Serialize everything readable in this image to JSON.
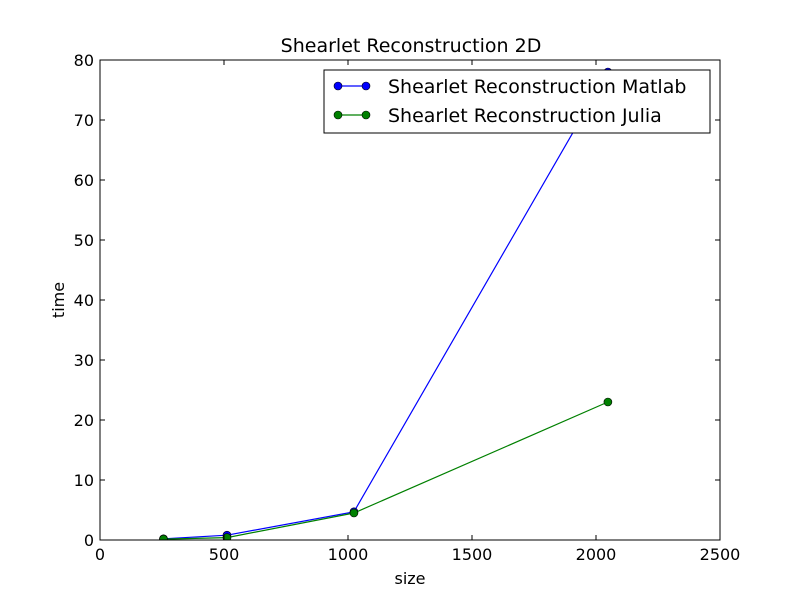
{
  "chart_data": {
    "type": "line",
    "title": "Shearlet Reconstruction 2D",
    "xlabel": "size",
    "ylabel": "time",
    "xlim": [
      0,
      2500
    ],
    "ylim": [
      0,
      80
    ],
    "xticks": [
      0,
      500,
      1000,
      1500,
      2000,
      2500
    ],
    "yticks": [
      0,
      10,
      20,
      30,
      40,
      50,
      60,
      70,
      80
    ],
    "grid": false,
    "legend_position": "top-right",
    "series": [
      {
        "name": "Shearlet Reconstruction Matlab",
        "color": "#0000ff",
        "x": [
          256,
          512,
          1024,
          2048
        ],
        "y": [
          0.2,
          0.8,
          4.7,
          78
        ]
      },
      {
        "name": "Shearlet Reconstruction Julia",
        "color": "#008000",
        "x": [
          256,
          512,
          1024,
          2048
        ],
        "y": [
          0.15,
          0.4,
          4.5,
          23
        ]
      }
    ]
  }
}
